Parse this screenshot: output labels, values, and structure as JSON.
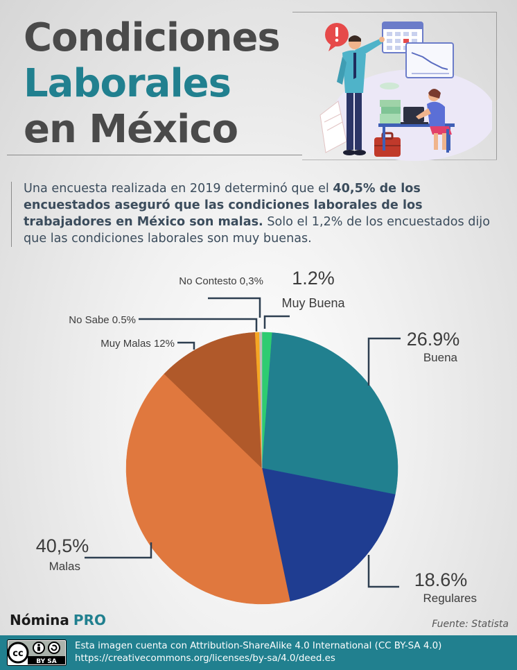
{
  "title": {
    "line1": "Condiciones",
    "line2": "Laborales",
    "line3": "en México"
  },
  "intro": {
    "part1": "Una encuesta realizada en 2019 determinó que el ",
    "bold1": "40,5% de los encuestados aseguró que las condiciones laborales de los trabajadores en México son malas.",
    "part2": " Solo el 1,2% de los encuestados dijo que las condiciones laborales son muy buenas."
  },
  "colors": {
    "teal": "#21808f",
    "title_dark": "#4a4a4a",
    "label_line": "#2d3e50"
  },
  "illustration": {
    "icons": [
      "alert-bubble-icon",
      "calendar-icon",
      "line-chart-board-icon",
      "businessman-figure",
      "woman-at-laptop-figure",
      "briefcase-icon",
      "paper-stack-icon"
    ]
  },
  "chart_data": {
    "type": "pie",
    "title": "",
    "unit": "%",
    "start_angle_deg": 0,
    "direction": "clockwise",
    "slices": [
      {
        "key": "muy_buena",
        "label": "Muy Buena",
        "value": 1.2,
        "value_text": "1.2%",
        "color": "#2ecc71"
      },
      {
        "key": "buena",
        "label": "Buena",
        "value": 26.9,
        "value_text": "26.9%",
        "color": "#21808f"
      },
      {
        "key": "regulares",
        "label": "Regulares",
        "value": 18.6,
        "value_text": "18.6%",
        "color": "#1f3d91"
      },
      {
        "key": "malas",
        "label": "Malas",
        "value": 40.5,
        "value_text": "40,5%",
        "color": "#e0783e"
      },
      {
        "key": "muy_malas",
        "label": "Muy Malas",
        "value": 12,
        "value_text": "Muy Malas 12%",
        "color": "#b0592a"
      },
      {
        "key": "no_sabe",
        "label": "No Sabe",
        "value": 0.5,
        "value_text": "No Sabe 0.5%",
        "color": "#f5a623"
      },
      {
        "key": "no_contesto",
        "label": "No Contesto",
        "value": 0.3,
        "value_text": "No Contesto 0,3%",
        "color": "#bdbdbd"
      }
    ]
  },
  "brand": {
    "part1": "Nómina",
    "part2": "PRO"
  },
  "source": "Fuente: Statista",
  "license": {
    "badge_text": "BY SA",
    "line1": "Esta imagen cuenta con Attribution-ShareAlike 4.0 International (CC BY-SA 4.0)",
    "line2": "https://creativecommons.org/licenses/by-sa/4.0/deed.es"
  }
}
